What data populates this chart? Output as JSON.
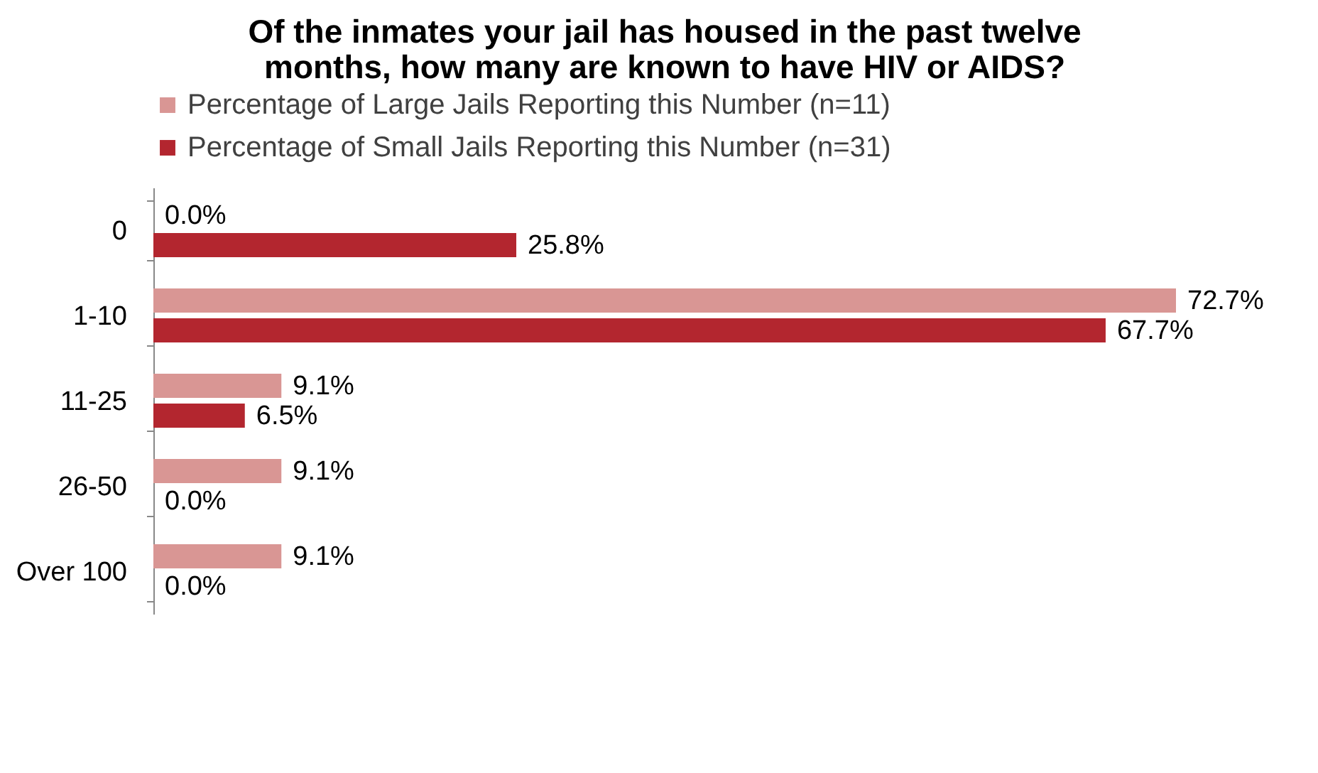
{
  "chart_data": {
    "type": "bar",
    "orientation": "horizontal",
    "title": "Of the inmates your jail has housed in the past twelve months, how many are known to have HIV or AIDS?",
    "categories": [
      "0",
      "1-10",
      "11-25",
      "26-50",
      "Over 100"
    ],
    "series": [
      {
        "name": "Percentage of Large Jails Reporting this Number (n=11)",
        "color": "#d99694",
        "values": [
          0.0,
          72.7,
          9.1,
          9.1,
          9.1
        ],
        "value_labels": [
          "0.0%",
          "72.7%",
          "9.1%",
          "9.1%",
          "9.1%"
        ]
      },
      {
        "name": "Percentage of Small Jails Reporting this Number (n=31)",
        "color": "#b3262f",
        "values": [
          25.8,
          67.7,
          6.5,
          0.0,
          0.0
        ],
        "value_labels": [
          "25.8%",
          "67.7%",
          "6.5%",
          "0.0%",
          "0.0%"
        ]
      }
    ],
    "legend": "top",
    "grid": false
  }
}
